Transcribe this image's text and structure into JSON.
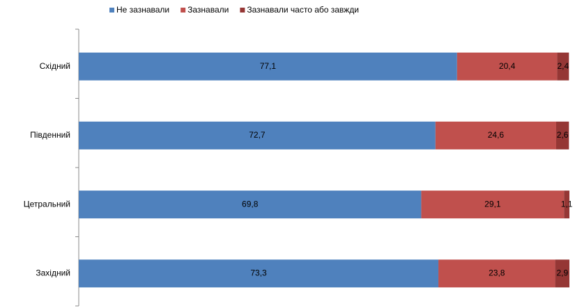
{
  "chart_data": {
    "type": "stacked-barh",
    "categories": [
      "Східний",
      "Південний",
      "Цетральний",
      "Західний"
    ],
    "series": [
      {
        "name": "Не зазнавали",
        "color": "#4f81bd",
        "values": [
          77.1,
          72.7,
          69.8,
          73.3
        ],
        "value_labels": [
          "77,1",
          "72,7",
          "69,8",
          "73,3"
        ]
      },
      {
        "name": "Зазнавали",
        "color": "#c0504d",
        "values": [
          20.4,
          24.6,
          29.1,
          23.8
        ],
        "value_labels": [
          "20,4",
          "24,6",
          "29,1",
          "23,8"
        ]
      },
      {
        "name": "Зазнавали часто або завжди",
        "color": "#953735",
        "values": [
          2.4,
          2.6,
          1.1,
          2.9
        ],
        "value_labels": [
          "2,4",
          "2,6",
          "1,1",
          "2,9"
        ]
      }
    ],
    "xlim": [
      0,
      100
    ],
    "legend": "top"
  }
}
